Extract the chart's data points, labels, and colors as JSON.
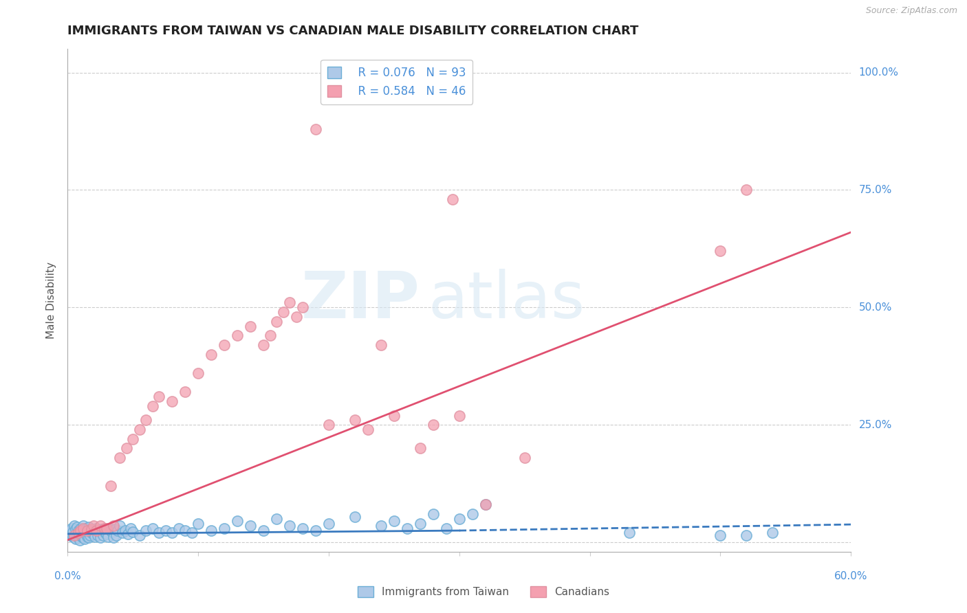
{
  "title": "IMMIGRANTS FROM TAIWAN VS CANADIAN MALE DISABILITY CORRELATION CHART",
  "source_text": "Source: ZipAtlas.com",
  "ylabel": "Male Disability",
  "xlim": [
    0.0,
    0.6
  ],
  "ylim": [
    -0.02,
    1.05
  ],
  "ytick_positions": [
    0.0,
    0.25,
    0.5,
    0.75,
    1.0
  ],
  "ytick_labels": [
    "",
    "25.0%",
    "50.0%",
    "75.0%",
    "100.0%"
  ],
  "legend_r1": "R = 0.076",
  "legend_n1": "N = 93",
  "legend_r2": "R = 0.584",
  "legend_n2": "N = 46",
  "watermark_zip": "ZIP",
  "watermark_atlas": "atlas",
  "blue_color": "#6baed6",
  "blue_light": "#aec9e8",
  "pink_color": "#f4a0b0",
  "pink_line_color": "#e05070",
  "blue_line_color": "#3a7abf",
  "title_color": "#222222",
  "axis_label_color": "#4a90d9",
  "grid_color": "#cccccc",
  "background_color": "#ffffff",
  "blue_scatter_x": [
    0.001,
    0.002,
    0.002,
    0.003,
    0.003,
    0.004,
    0.004,
    0.005,
    0.005,
    0.006,
    0.006,
    0.007,
    0.007,
    0.008,
    0.008,
    0.009,
    0.009,
    0.01,
    0.01,
    0.011,
    0.011,
    0.012,
    0.012,
    0.013,
    0.013,
    0.014,
    0.014,
    0.015,
    0.015,
    0.016,
    0.016,
    0.017,
    0.018,
    0.019,
    0.02,
    0.021,
    0.022,
    0.023,
    0.024,
    0.025,
    0.026,
    0.027,
    0.028,
    0.029,
    0.03,
    0.031,
    0.032,
    0.033,
    0.034,
    0.035,
    0.036,
    0.037,
    0.038,
    0.04,
    0.042,
    0.044,
    0.046,
    0.048,
    0.05,
    0.055,
    0.06,
    0.065,
    0.07,
    0.075,
    0.08,
    0.085,
    0.09,
    0.095,
    0.1,
    0.11,
    0.12,
    0.13,
    0.14,
    0.15,
    0.16,
    0.17,
    0.18,
    0.19,
    0.2,
    0.22,
    0.24,
    0.25,
    0.26,
    0.27,
    0.28,
    0.29,
    0.3,
    0.31,
    0.32,
    0.43,
    0.5,
    0.52,
    0.54
  ],
  "blue_scatter_y": [
    0.02,
    0.015,
    0.025,
    0.018,
    0.03,
    0.012,
    0.022,
    0.01,
    0.035,
    0.008,
    0.028,
    0.015,
    0.032,
    0.01,
    0.025,
    0.005,
    0.02,
    0.015,
    0.03,
    0.012,
    0.025,
    0.01,
    0.035,
    0.008,
    0.022,
    0.018,
    0.03,
    0.012,
    0.025,
    0.01,
    0.032,
    0.015,
    0.02,
    0.025,
    0.018,
    0.012,
    0.03,
    0.015,
    0.022,
    0.01,
    0.028,
    0.015,
    0.025,
    0.02,
    0.018,
    0.012,
    0.03,
    0.025,
    0.022,
    0.01,
    0.028,
    0.015,
    0.025,
    0.035,
    0.02,
    0.025,
    0.018,
    0.03,
    0.022,
    0.015,
    0.025,
    0.03,
    0.02,
    0.025,
    0.02,
    0.03,
    0.025,
    0.02,
    0.04,
    0.025,
    0.03,
    0.045,
    0.035,
    0.025,
    0.05,
    0.035,
    0.03,
    0.025,
    0.04,
    0.055,
    0.035,
    0.045,
    0.03,
    0.04,
    0.06,
    0.03,
    0.05,
    0.06,
    0.08,
    0.02,
    0.015,
    0.015,
    0.02
  ],
  "pink_scatter_x": [
    0.005,
    0.008,
    0.01,
    0.012,
    0.015,
    0.018,
    0.02,
    0.022,
    0.025,
    0.028,
    0.03,
    0.033,
    0.035,
    0.04,
    0.045,
    0.05,
    0.055,
    0.06,
    0.065,
    0.07,
    0.08,
    0.09,
    0.1,
    0.11,
    0.12,
    0.13,
    0.14,
    0.15,
    0.155,
    0.16,
    0.165,
    0.17,
    0.175,
    0.18,
    0.2,
    0.22,
    0.23,
    0.24,
    0.25,
    0.27,
    0.28,
    0.3,
    0.32,
    0.35,
    0.5,
    0.52
  ],
  "pink_scatter_y": [
    0.015,
    0.02,
    0.025,
    0.03,
    0.025,
    0.028,
    0.035,
    0.025,
    0.035,
    0.03,
    0.03,
    0.12,
    0.035,
    0.18,
    0.2,
    0.22,
    0.24,
    0.26,
    0.29,
    0.31,
    0.3,
    0.32,
    0.36,
    0.4,
    0.42,
    0.44,
    0.46,
    0.42,
    0.44,
    0.47,
    0.49,
    0.51,
    0.48,
    0.5,
    0.25,
    0.26,
    0.24,
    0.42,
    0.27,
    0.2,
    0.25,
    0.27,
    0.08,
    0.18,
    0.62,
    0.75
  ],
  "pink_extra_high_x": [
    0.19
  ],
  "pink_extra_high_y": [
    0.88
  ],
  "pink_extra_75_x": [
    0.295
  ],
  "pink_extra_75_y": [
    0.73
  ],
  "blue_trend_x": [
    0.0,
    0.6
  ],
  "blue_trend_y": [
    0.018,
    0.038
  ],
  "pink_trend_x": [
    0.0,
    0.6
  ],
  "pink_trend_y": [
    0.005,
    0.66
  ]
}
